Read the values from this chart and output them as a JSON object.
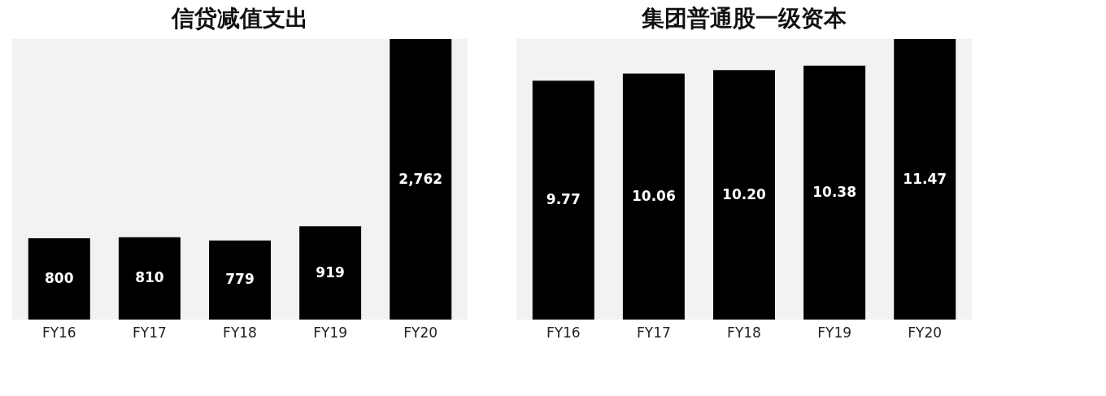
{
  "chart_data": [
    {
      "type": "bar",
      "title": "信贷减值支出",
      "categories": [
        "FY16",
        "FY17",
        "FY18",
        "FY19",
        "FY20"
      ],
      "values": [
        800,
        810,
        779,
        919,
        2762
      ],
      "color": "#000000",
      "data_labels": true,
      "value_labels": [
        "800",
        "810",
        "779",
        "919",
        "2,762"
      ],
      "grid": false,
      "tick_labels": "x"
    },
    {
      "type": "bar",
      "title": "集团普通股一级资本",
      "categories": [
        "FY16",
        "FY17",
        "FY18",
        "FY19",
        "FY20"
      ],
      "values": [
        9.77,
        10.06,
        10.2,
        10.38,
        11.47
      ],
      "color": "#000000",
      "data_labels": true,
      "value_labels": [
        "9.77",
        "10.06",
        "10.20",
        "10.38",
        "11.47"
      ],
      "grid": false,
      "tick_labels": "x"
    }
  ]
}
